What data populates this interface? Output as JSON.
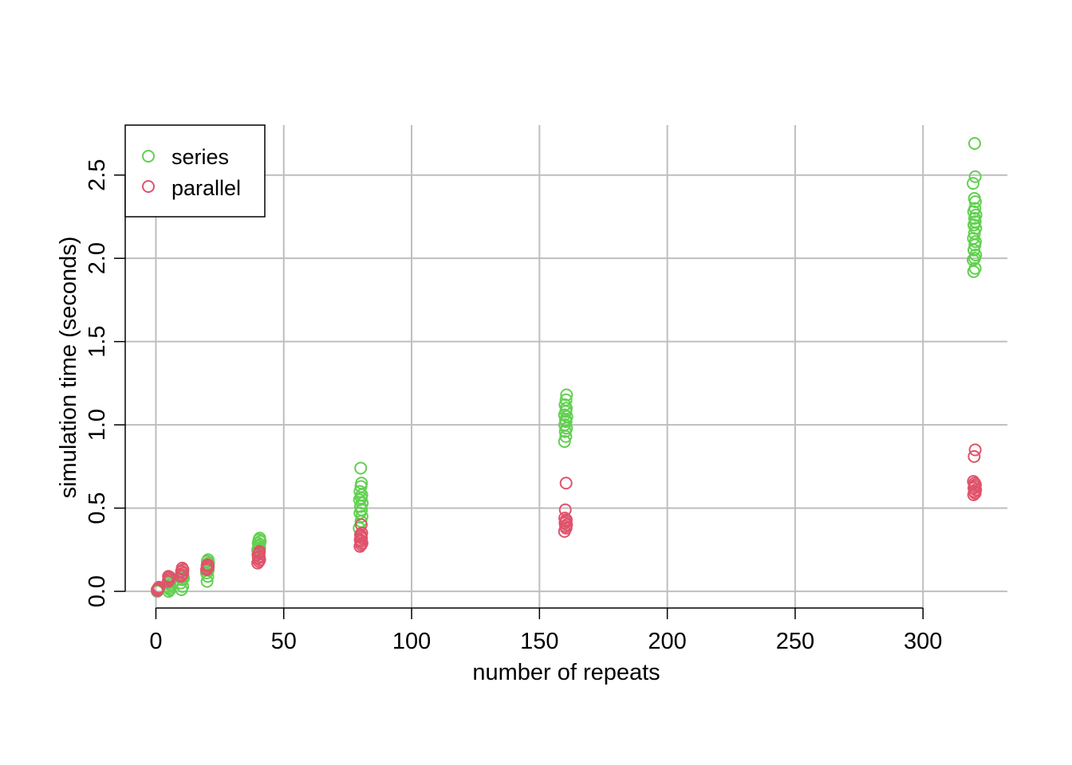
{
  "chart_data": {
    "type": "scatter",
    "title": "",
    "xlabel": "number of repeats",
    "ylabel": "simulation time (seconds)",
    "xlim": [
      -12,
      333
    ],
    "ylim": [
      -0.1,
      2.8
    ],
    "x_ticks": [
      0,
      50,
      100,
      150,
      200,
      250,
      300
    ],
    "x_tick_labels": [
      "0",
      "50",
      "100",
      "150",
      "200",
      "250",
      "300"
    ],
    "y_ticks": [
      0.0,
      0.5,
      1.0,
      1.5,
      2.0,
      2.5
    ],
    "y_tick_labels": [
      "0.0",
      "0.5",
      "1.0",
      "1.5",
      "2.0",
      "2.5"
    ],
    "grid": true,
    "legend_position": "top-left",
    "series": [
      {
        "name": "series",
        "color": "#61D04F",
        "points": [
          [
            0.5,
            0.0
          ],
          [
            0.7,
            0.01
          ],
          [
            1.0,
            0.02
          ],
          [
            0.8,
            0.005
          ],
          [
            1.2,
            0.015
          ],
          [
            1.0,
            0.01
          ],
          [
            5.0,
            0.0
          ],
          [
            5.5,
            0.01
          ],
          [
            4.8,
            0.03
          ],
          [
            5.2,
            0.02
          ],
          [
            5.4,
            0.04
          ],
          [
            5.0,
            0.05
          ],
          [
            5.6,
            0.06
          ],
          [
            10.0,
            0.01
          ],
          [
            10.5,
            0.03
          ],
          [
            9.8,
            0.05
          ],
          [
            10.3,
            0.07
          ],
          [
            10.6,
            0.09
          ],
          [
            10.2,
            0.12
          ],
          [
            10.8,
            0.08
          ],
          [
            20.0,
            0.06
          ],
          [
            20.3,
            0.09
          ],
          [
            19.8,
            0.11
          ],
          [
            20.5,
            0.13
          ],
          [
            20.2,
            0.15
          ],
          [
            20.6,
            0.17
          ],
          [
            20.1,
            0.18
          ],
          [
            20.4,
            0.19
          ],
          [
            40.0,
            0.2
          ],
          [
            40.4,
            0.23
          ],
          [
            39.8,
            0.25
          ],
          [
            40.6,
            0.26
          ],
          [
            40.2,
            0.27
          ],
          [
            40.5,
            0.28
          ],
          [
            40.0,
            0.29
          ],
          [
            40.8,
            0.3
          ],
          [
            40.3,
            0.31
          ],
          [
            40.6,
            0.32
          ],
          [
            79.5,
            0.38
          ],
          [
            80.2,
            0.42
          ],
          [
            80.6,
            0.45
          ],
          [
            79.8,
            0.47
          ],
          [
            80.4,
            0.49
          ],
          [
            80.0,
            0.51
          ],
          [
            80.7,
            0.53
          ],
          [
            79.6,
            0.55
          ],
          [
            80.3,
            0.56
          ],
          [
            80.5,
            0.58
          ],
          [
            79.8,
            0.6
          ],
          [
            80.2,
            0.63
          ],
          [
            80.4,
            0.65
          ],
          [
            80.1,
            0.74
          ],
          [
            159.8,
            0.9
          ],
          [
            160.3,
            0.93
          ],
          [
            160.1,
            0.96
          ],
          [
            160.6,
            0.98
          ],
          [
            159.9,
            1.0
          ],
          [
            160.4,
            1.02
          ],
          [
            160.2,
            1.03
          ],
          [
            160.7,
            1.05
          ],
          [
            159.8,
            1.06
          ],
          [
            160.3,
            1.08
          ],
          [
            160.5,
            1.1
          ],
          [
            160.0,
            1.12
          ],
          [
            160.4,
            1.15
          ],
          [
            160.6,
            1.18
          ],
          [
            319.8,
            1.92
          ],
          [
            320.4,
            1.94
          ],
          [
            319.6,
            1.99
          ],
          [
            320.2,
            2.0
          ],
          [
            320.6,
            2.02
          ],
          [
            319.9,
            2.05
          ],
          [
            320.3,
            2.08
          ],
          [
            320.5,
            2.1
          ],
          [
            319.7,
            2.12
          ],
          [
            320.1,
            2.15
          ],
          [
            320.6,
            2.18
          ],
          [
            319.9,
            2.2
          ],
          [
            320.4,
            2.22
          ],
          [
            320.2,
            2.24
          ],
          [
            320.7,
            2.26
          ],
          [
            319.8,
            2.28
          ],
          [
            320.3,
            2.3
          ],
          [
            320.5,
            2.34
          ],
          [
            320.1,
            2.36
          ],
          [
            319.6,
            2.45
          ],
          [
            320.4,
            2.49
          ],
          [
            320.2,
            2.69
          ]
        ]
      },
      {
        "name": "parallel",
        "color": "#DF536B",
        "points": [
          [
            0.5,
            0.01
          ],
          [
            1.0,
            0.02
          ],
          [
            0.8,
            0.015
          ],
          [
            1.2,
            0.025
          ],
          [
            0.6,
            0.005
          ],
          [
            4.8,
            0.06
          ],
          [
            5.2,
            0.07
          ],
          [
            5.0,
            0.08
          ],
          [
            5.5,
            0.085
          ],
          [
            4.9,
            0.09
          ],
          [
            9.8,
            0.09
          ],
          [
            10.2,
            0.1
          ],
          [
            10.5,
            0.11
          ],
          [
            10.0,
            0.12
          ],
          [
            10.6,
            0.13
          ],
          [
            10.3,
            0.14
          ],
          [
            19.8,
            0.13
          ],
          [
            20.2,
            0.14
          ],
          [
            20.5,
            0.15
          ],
          [
            20.0,
            0.155
          ],
          [
            20.3,
            0.16
          ],
          [
            39.8,
            0.17
          ],
          [
            40.3,
            0.18
          ],
          [
            40.6,
            0.19
          ],
          [
            40.1,
            0.2
          ],
          [
            40.4,
            0.21
          ],
          [
            39.9,
            0.22
          ],
          [
            40.2,
            0.23
          ],
          [
            40.5,
            0.24
          ],
          [
            79.8,
            0.27
          ],
          [
            80.3,
            0.28
          ],
          [
            80.6,
            0.29
          ],
          [
            80.1,
            0.3
          ],
          [
            79.9,
            0.31
          ],
          [
            80.4,
            0.32
          ],
          [
            80.2,
            0.33
          ],
          [
            80.0,
            0.34
          ],
          [
            80.5,
            0.35
          ],
          [
            80.3,
            0.4
          ],
          [
            159.8,
            0.36
          ],
          [
            160.4,
            0.38
          ],
          [
            160.2,
            0.39
          ],
          [
            160.6,
            0.4
          ],
          [
            160.0,
            0.41
          ],
          [
            160.3,
            0.42
          ],
          [
            160.5,
            0.43
          ],
          [
            159.9,
            0.44
          ],
          [
            160.1,
            0.49
          ],
          [
            160.4,
            0.65
          ],
          [
            319.8,
            0.58
          ],
          [
            320.4,
            0.59
          ],
          [
            320.1,
            0.6
          ],
          [
            320.6,
            0.61
          ],
          [
            319.9,
            0.62
          ],
          [
            320.3,
            0.63
          ],
          [
            320.5,
            0.64
          ],
          [
            320.2,
            0.65
          ],
          [
            319.7,
            0.66
          ],
          [
            320.0,
            0.81
          ],
          [
            320.4,
            0.85
          ]
        ]
      }
    ]
  }
}
